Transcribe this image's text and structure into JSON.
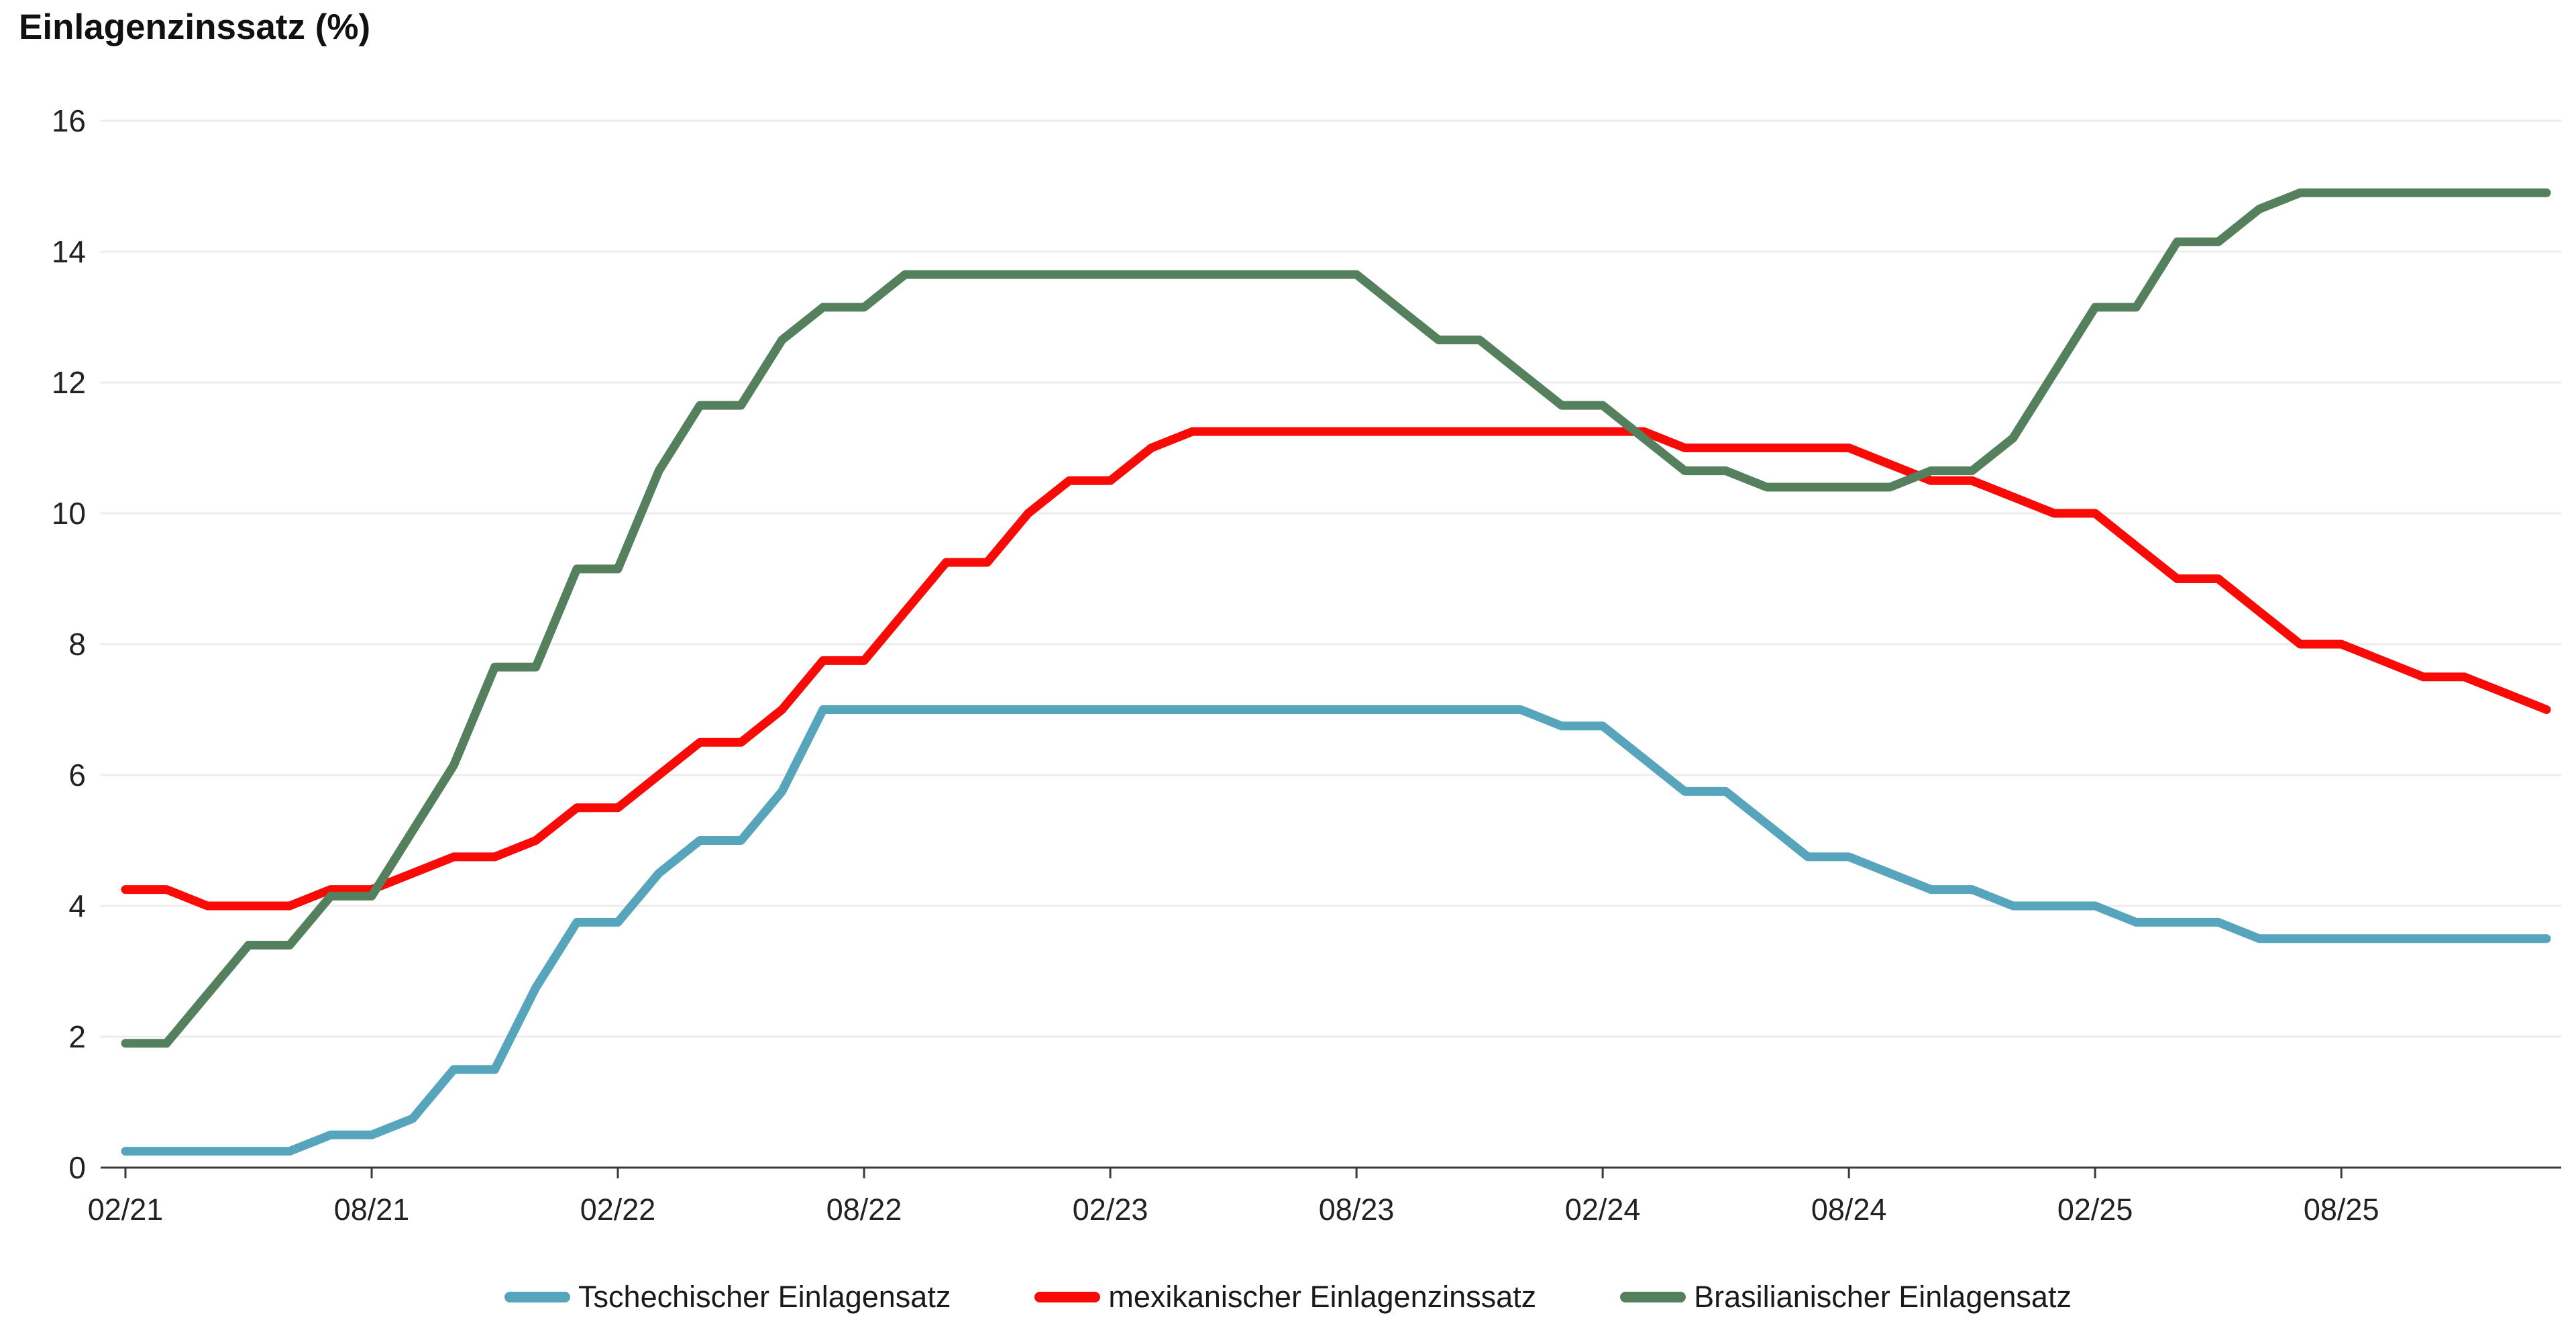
{
  "chart_data": {
    "type": "line",
    "title": "Einlagenzinssatz (%)",
    "xlabel": "",
    "ylabel": "",
    "ylim": [
      0,
      16
    ],
    "yticks": [
      0,
      2,
      4,
      6,
      8,
      10,
      12,
      14,
      16
    ],
    "grid": "horizontal-only",
    "legend_position": "bottom",
    "x_frequency": "monthly",
    "x_start": "02/21",
    "x_end": "01/26",
    "categories": [
      "02/21",
      "03/21",
      "04/21",
      "05/21",
      "06/21",
      "07/21",
      "08/21",
      "09/21",
      "10/21",
      "11/21",
      "12/21",
      "01/22",
      "02/22",
      "03/22",
      "04/22",
      "05/22",
      "06/22",
      "07/22",
      "08/22",
      "09/22",
      "10/22",
      "11/22",
      "12/22",
      "01/23",
      "02/23",
      "03/23",
      "04/23",
      "05/23",
      "06/23",
      "07/23",
      "08/23",
      "09/23",
      "10/23",
      "11/23",
      "12/23",
      "01/24",
      "02/24",
      "03/24",
      "04/24",
      "05/24",
      "06/24",
      "07/24",
      "08/24",
      "09/24",
      "10/24",
      "11/24",
      "12/24",
      "01/25",
      "02/25",
      "03/25",
      "04/25",
      "05/25",
      "06/25",
      "07/25",
      "08/25",
      "09/25",
      "10/25",
      "11/25",
      "12/25",
      "01/26"
    ],
    "xticks": {
      "indices": [
        0,
        6,
        12,
        18,
        24,
        30,
        36,
        42,
        48,
        54
      ],
      "labels": [
        "02/21",
        "08/21",
        "02/22",
        "08/22",
        "02/23",
        "08/23",
        "02/24",
        "08/24",
        "02/25",
        "08/25"
      ]
    },
    "series": [
      {
        "name": "Tschechischer Einlagensatz",
        "color": "#56A5BC",
        "values": [
          0.25,
          0.25,
          0.25,
          0.25,
          0.25,
          0.5,
          0.5,
          0.75,
          1.5,
          1.5,
          2.75,
          3.75,
          3.75,
          4.5,
          5.0,
          5.0,
          5.75,
          7.0,
          7.0,
          7.0,
          7.0,
          7.0,
          7.0,
          7.0,
          7.0,
          7.0,
          7.0,
          7.0,
          7.0,
          7.0,
          7.0,
          7.0,
          7.0,
          7.0,
          7.0,
          6.75,
          6.75,
          6.25,
          5.75,
          5.75,
          5.25,
          4.75,
          4.75,
          4.5,
          4.25,
          4.25,
          4.0,
          4.0,
          4.0,
          3.75,
          3.75,
          3.75,
          3.5,
          3.5,
          3.5,
          3.5,
          3.5,
          3.5,
          3.5,
          3.5
        ]
      },
      {
        "name": "mexikanischer Einlagenzinssatz",
        "color": "#F80B07",
        "values": [
          4.25,
          4.25,
          4.0,
          4.0,
          4.0,
          4.25,
          4.25,
          4.5,
          4.75,
          4.75,
          5.0,
          5.5,
          5.5,
          6.0,
          6.5,
          6.5,
          7.0,
          7.75,
          7.75,
          8.5,
          9.25,
          9.25,
          10.0,
          10.5,
          10.5,
          11.0,
          11.25,
          11.25,
          11.25,
          11.25,
          11.25,
          11.25,
          11.25,
          11.25,
          11.25,
          11.25,
          11.25,
          11.25,
          11.0,
          11.0,
          11.0,
          11.0,
          11.0,
          10.75,
          10.5,
          10.5,
          10.25,
          10.0,
          10.0,
          9.5,
          9.0,
          9.0,
          8.5,
          8.0,
          8.0,
          7.75,
          7.5,
          7.5,
          7.25,
          7.0
        ]
      },
      {
        "name": "Brasilianischer Einlagensatz",
        "color": "#55805E",
        "values": [
          1.9,
          1.9,
          2.65,
          3.4,
          3.4,
          4.15,
          4.15,
          5.15,
          6.15,
          7.65,
          7.65,
          9.15,
          9.15,
          10.65,
          11.65,
          11.65,
          12.65,
          13.15,
          13.15,
          13.65,
          13.65,
          13.65,
          13.65,
          13.65,
          13.65,
          13.65,
          13.65,
          13.65,
          13.65,
          13.65,
          13.65,
          13.15,
          12.65,
          12.65,
          12.15,
          11.65,
          11.65,
          11.15,
          10.65,
          10.65,
          10.4,
          10.4,
          10.4,
          10.4,
          10.65,
          10.65,
          11.15,
          12.15,
          13.15,
          13.15,
          14.15,
          14.15,
          14.65,
          14.9,
          14.9,
          14.9,
          14.9,
          14.9,
          14.9,
          14.9
        ]
      }
    ],
    "colors": {
      "grid_line": "#EDEDED",
      "axis_line": "#3a3a3a",
      "tick_label": "#222222",
      "title_text": "#111111"
    }
  }
}
